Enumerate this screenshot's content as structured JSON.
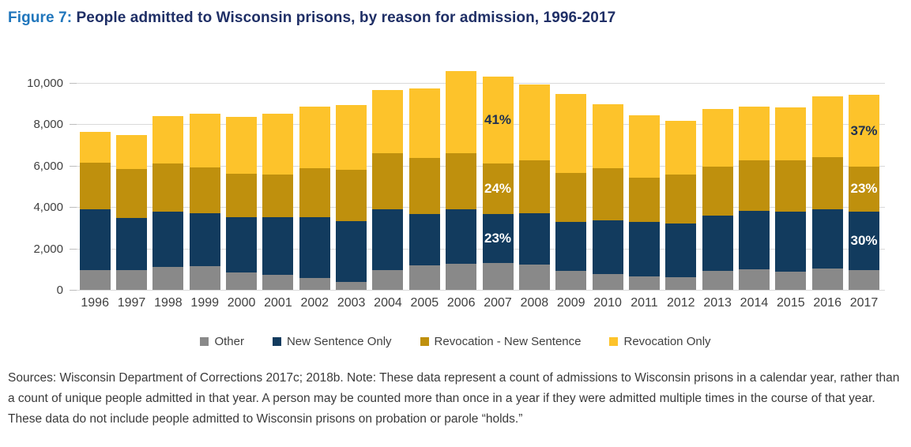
{
  "title": {
    "prefix": "Figure 7:",
    "text": " People admitted to Wisconsin prisons, by reason for admission, 1996-2017"
  },
  "colors": {
    "title_prefix": "#2076BC",
    "title_main": "#1F2F66",
    "gridline": "#D9D9D9",
    "axis_text": "#404040"
  },
  "chart_data": {
    "type": "bar",
    "stacked": true,
    "grid": true,
    "legend_position": "bottom",
    "ylim": [
      0,
      10000
    ],
    "yticks": [
      {
        "value": 10000,
        "label": "10,000"
      },
      {
        "value": 8000,
        "label": "8,000"
      },
      {
        "value": 6000,
        "label": "6,000"
      },
      {
        "value": 4000,
        "label": "4,000"
      },
      {
        "value": 2000,
        "label": "2,000"
      },
      {
        "value": 0,
        "label": "0"
      }
    ],
    "categories": [
      "1996",
      "1997",
      "1998",
      "1999",
      "2000",
      "2001",
      "2002",
      "2003",
      "2004",
      "2005",
      "2006",
      "2007",
      "2008",
      "2009",
      "2010",
      "2011",
      "2012",
      "2013",
      "2014",
      "2015",
      "2016",
      "2017"
    ],
    "series": [
      {
        "name": "Other",
        "color": "#898989",
        "values": [
          950,
          950,
          1100,
          1150,
          850,
          720,
          570,
          400,
          950,
          1200,
          1270,
          1310,
          1230,
          900,
          760,
          660,
          600,
          900,
          980,
          890,
          1020,
          955
        ]
      },
      {
        "name": "New Sentence Only",
        "color": "#123B5E",
        "values": [
          2950,
          2530,
          2680,
          2570,
          2680,
          2810,
          2960,
          2940,
          2960,
          2450,
          2640,
          2345,
          2460,
          2400,
          2615,
          2615,
          2610,
          2690,
          2840,
          2895,
          2865,
          2830
        ]
      },
      {
        "name": "Revocation - New Sentence",
        "color": "#BF900D",
        "values": [
          2250,
          2380,
          2330,
          2200,
          2080,
          2040,
          2360,
          2460,
          2680,
          2740,
          2710,
          2460,
          2570,
          2350,
          2485,
          2140,
          2355,
          2360,
          2425,
          2470,
          2510,
          2165
        ]
      },
      {
        "name": "Revocation Only",
        "color": "#FDC32B",
        "values": [
          1500,
          1640,
          2290,
          2580,
          2760,
          2960,
          2970,
          3140,
          3050,
          3350,
          3950,
          4205,
          3670,
          3820,
          3120,
          3020,
          2615,
          2800,
          2610,
          2575,
          2945,
          3480
        ]
      }
    ],
    "bar_labels": [
      {
        "category": "2007",
        "series": "Revocation Only",
        "text": "41%",
        "color": "#1F3050"
      },
      {
        "category": "2007",
        "series": "Revocation - New Sentence",
        "text": "24%",
        "color": "#FFFFFF"
      },
      {
        "category": "2007",
        "series": "New Sentence Only",
        "text": "23%",
        "color": "#FFFFFF"
      },
      {
        "category": "2017",
        "series": "Revocation Only",
        "text": "37%",
        "color": "#1F3050"
      },
      {
        "category": "2017",
        "series": "Revocation - New Sentence",
        "text": "23%",
        "color": "#FFFFFF"
      },
      {
        "category": "2017",
        "series": "New Sentence Only",
        "text": "30%",
        "color": "#FFFFFF"
      }
    ]
  },
  "footnote": "Sources: Wisconsin Department of Corrections 2017c; 2018b. Note: These data represent a count of admissions to Wisconsin prisons in a calendar year, rather than a count of unique people admitted in that year. A person may be counted more than once in a year if they were admitted multiple times in the course of that year. These data do not include people admitted to Wisconsin prisons on probation or parole “holds.”"
}
